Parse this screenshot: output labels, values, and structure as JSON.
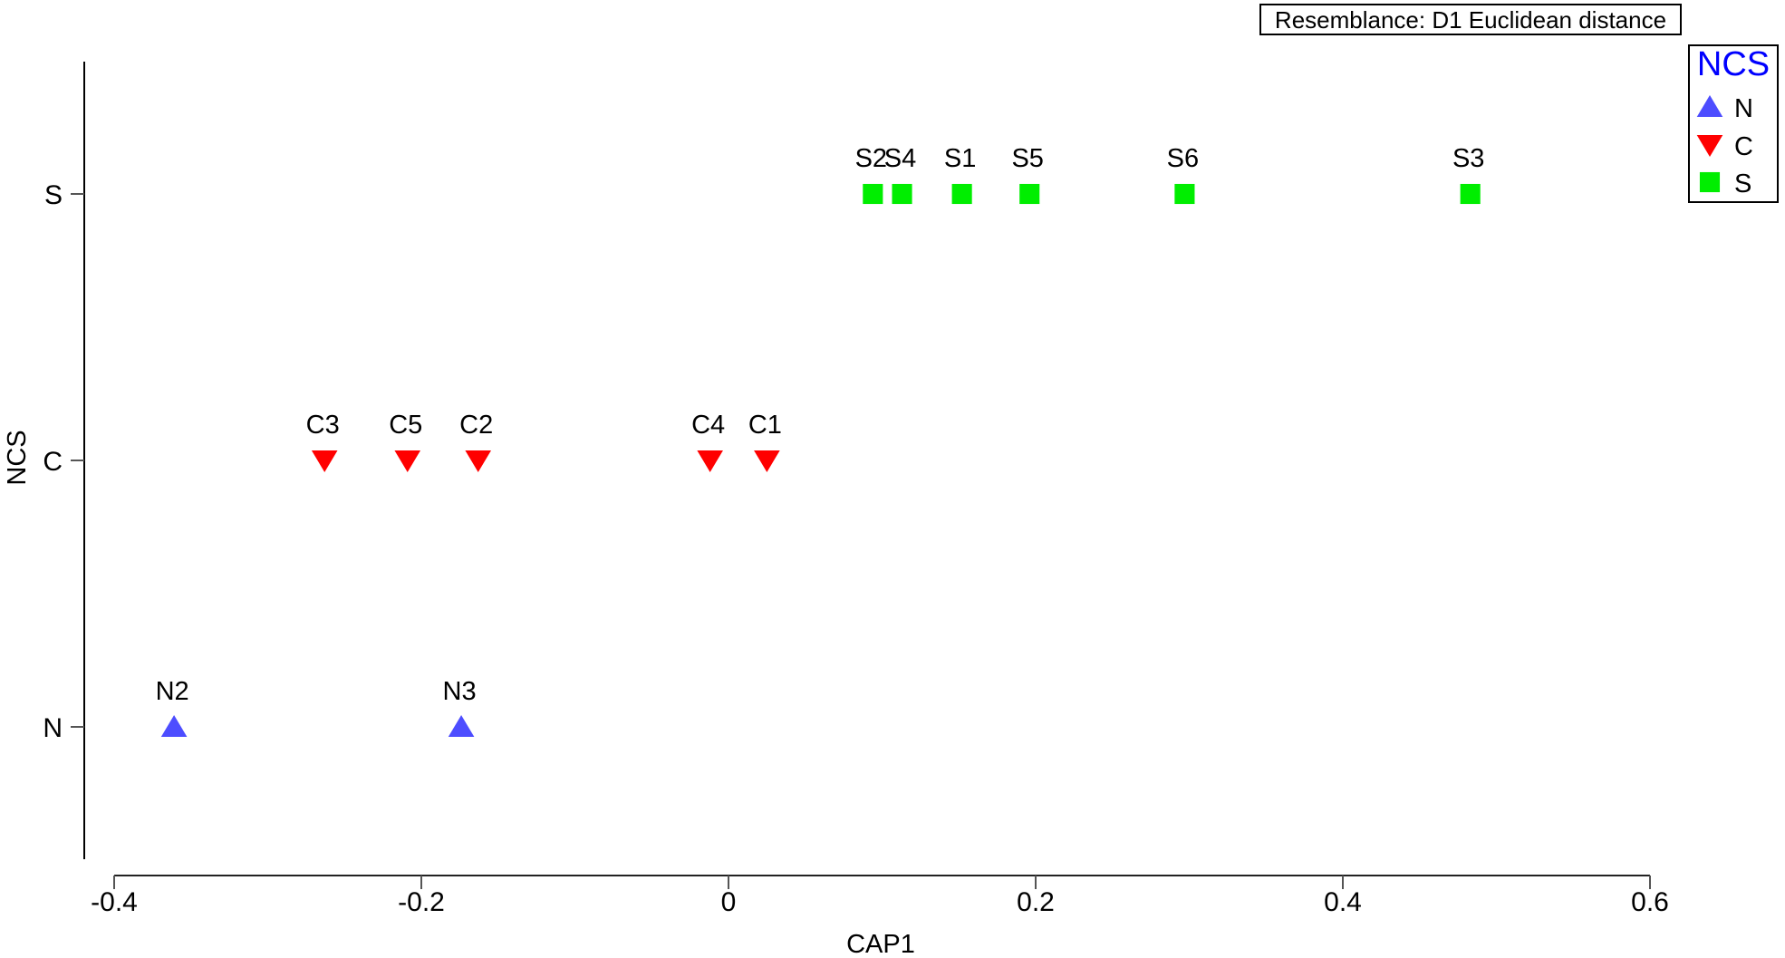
{
  "chart_data": {
    "type": "scatter",
    "title": "",
    "annotation": "Resemblance: D1 Euclidean distance",
    "xlabel": "CAP1",
    "ylabel": "NCS",
    "xlim": [
      -0.4,
      0.6
    ],
    "xticks": [
      "-0.4",
      "-0.2",
      "0",
      "0.2",
      "0.4",
      "0.6"
    ],
    "xtick_values": [
      -0.4,
      -0.2,
      0,
      0.2,
      0.4,
      0.6
    ],
    "yticks": [
      "N",
      "C",
      "S"
    ],
    "grid": false,
    "legend": {
      "title": "NCS",
      "position": "top-right",
      "entries": [
        {
          "label": "N",
          "marker": "triangle-up",
          "color": "#4d4dff"
        },
        {
          "label": "C",
          "marker": "triangle-down",
          "color": "#ff0000"
        },
        {
          "label": "S",
          "marker": "square",
          "color": "#00ee00"
        }
      ]
    },
    "series": [
      {
        "name": "N",
        "marker": "triangle-up",
        "color": "#4d4dff",
        "points": [
          {
            "label": "N2",
            "x": -0.361,
            "y": "N"
          },
          {
            "label": "N3",
            "x": -0.174,
            "y": "N"
          }
        ]
      },
      {
        "name": "C",
        "marker": "triangle-down",
        "color": "#ff0000",
        "points": [
          {
            "label": "C3",
            "x": -0.263,
            "y": "C"
          },
          {
            "label": "C5",
            "x": -0.209,
            "y": "C"
          },
          {
            "label": "C2",
            "x": -0.163,
            "y": "C"
          },
          {
            "label": "C4",
            "x": -0.012,
            "y": "C"
          },
          {
            "label": "C1",
            "x": 0.025,
            "y": "C"
          }
        ]
      },
      {
        "name": "S",
        "marker": "square",
        "color": "#00ee00",
        "points": [
          {
            "label": "S2",
            "x": 0.094,
            "y": "S"
          },
          {
            "label": "S4",
            "x": 0.113,
            "y": "S"
          },
          {
            "label": "S1",
            "x": 0.152,
            "y": "S"
          },
          {
            "label": "S5",
            "x": 0.196,
            "y": "S"
          },
          {
            "label": "S6",
            "x": 0.297,
            "y": "S"
          },
          {
            "label": "S3",
            "x": 0.483,
            "y": "S"
          }
        ]
      }
    ]
  }
}
